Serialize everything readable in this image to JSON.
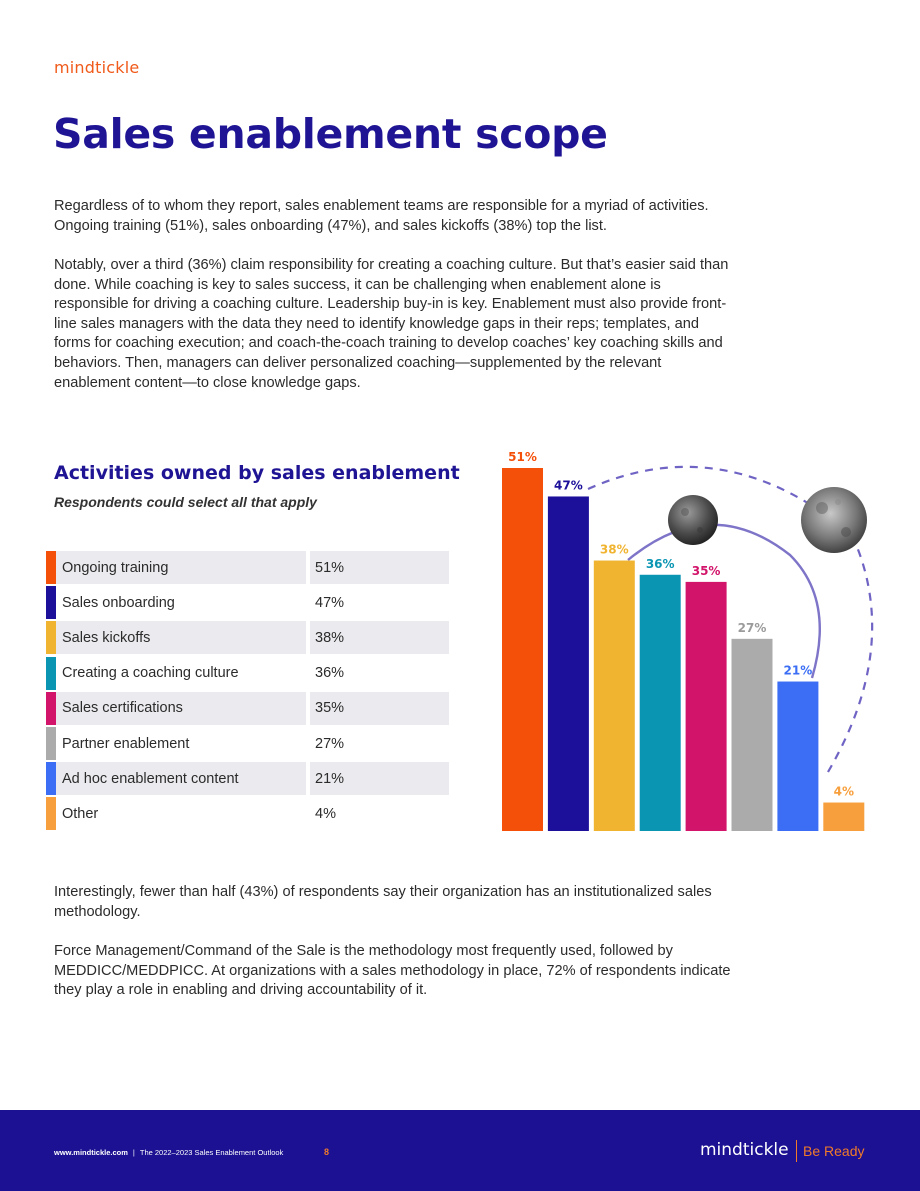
{
  "header": {
    "logo_text": "mindtickle"
  },
  "page_title": "Sales enablement scope",
  "paragraphs": {
    "intro": "Regardless of to whom they report, sales enablement teams are responsible for a myriad of activities. Ongoing training (51%), sales onboarding (47%), and sales kickoffs (38%) top the list.",
    "coaching": "Notably, over a third (36%) claim responsibility for creating a coaching culture. But that’s easier said than done. While coaching is key to sales success, it can be challenging when enablement alone is responsible for driving a coaching culture. Leadership buy-in is key. Enablement must also provide front-line sales managers with the data they need to identify knowledge gaps in their reps; templates, and forms for coaching execution; and coach-the-coach training to develop coaches’ key coaching skills and behaviors. Then, managers can deliver personalized coaching—supplemented by the relevant enablement content—to close knowledge gaps.",
    "methodology": "Interestingly, fewer than half (43%) of respondents say their organization has an institutionalized sales methodology.",
    "force_management": "Force Management/Command of the Sale is the methodology most frequently used, followed by MEDDICC/MEDDPICC. At organizations with a sales methodology in place, 72% of respondents indicate they play a role in enabling and driving accountability of it."
  },
  "chart_data": {
    "type": "bar",
    "title": "Activities owned by sales enablement",
    "subtitle": "Respondents could select all that apply",
    "categories": [
      "Ongoing training",
      "Sales onboarding",
      "Sales kickoffs",
      "Creating a coaching culture",
      "Sales certifications",
      "Partner enablement",
      "Ad hoc enablement content",
      "Other"
    ],
    "values": [
      51,
      47,
      38,
      36,
      35,
      27,
      21,
      4
    ],
    "labels": [
      "51%",
      "47%",
      "38%",
      "36%",
      "35%",
      "27%",
      "21%",
      "4%"
    ],
    "colors": [
      "#f5500a",
      "#1c0f9a",
      "#f0b431",
      "#0a95b3",
      "#d2156b",
      "#ababab",
      "#3b6ef5",
      "#f79f3c"
    ],
    "label_colors": [
      "#f5500a",
      "#1c0f9a",
      "#f0b431",
      "#0a95b3",
      "#d2156b",
      "#9b9b9b",
      "#3b6ef5",
      "#f79f3c"
    ],
    "ylabel": "",
    "xlabel": "",
    "ylim": [
      0,
      51
    ]
  },
  "footer": {
    "url": "www.mindtickle.com",
    "separator": "|",
    "publication": "The 2022–2023 Sales Enablement Outlook",
    "page_number": "8",
    "logo_text": "mindtickle",
    "tagline": "Be Ready"
  }
}
